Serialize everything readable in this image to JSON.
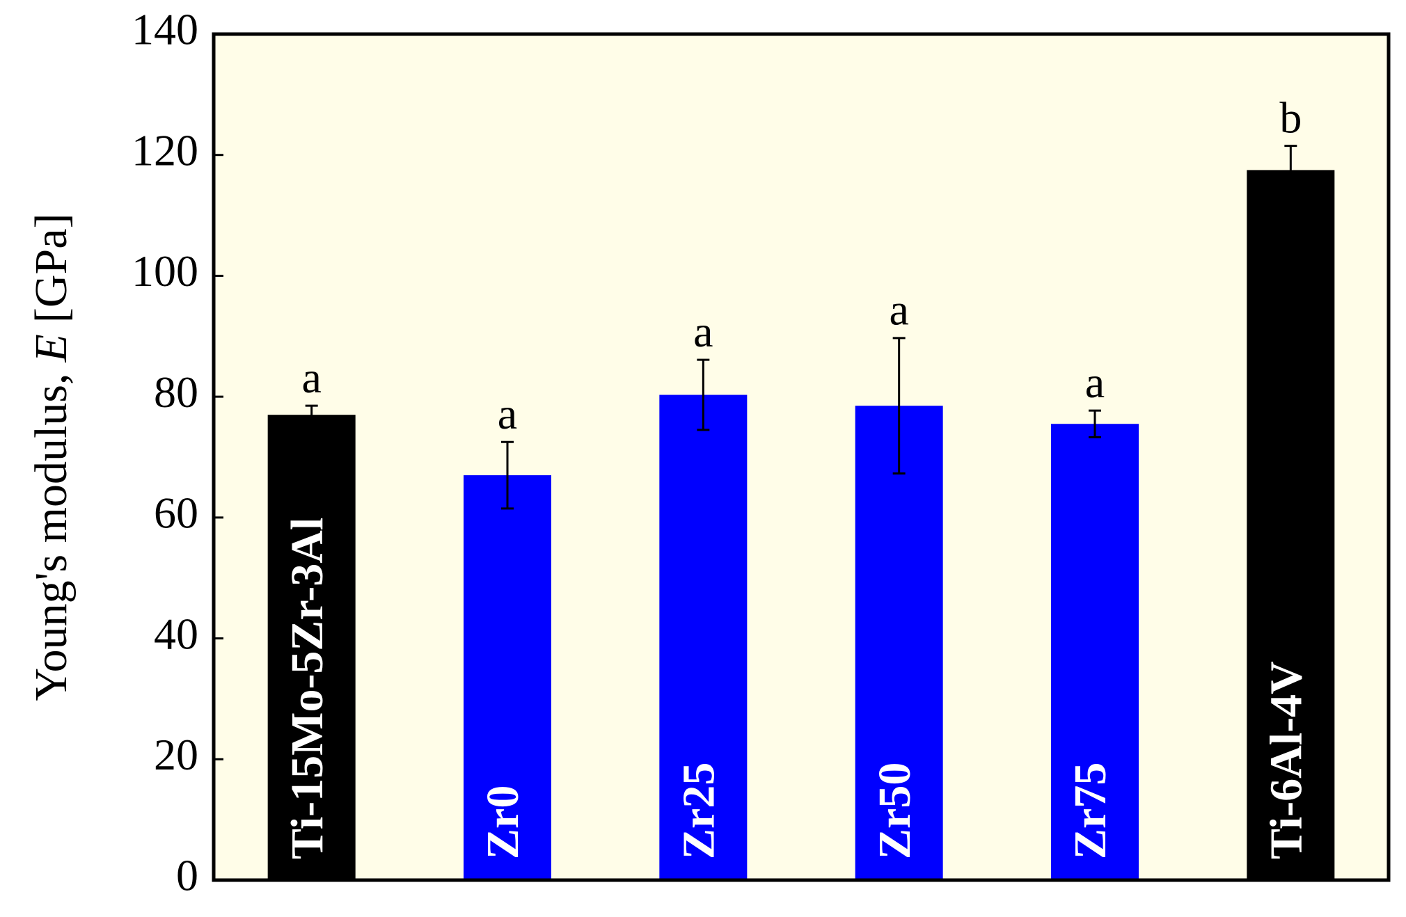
{
  "chart_data": {
    "type": "bar",
    "y_label_parts": [
      "Young's modulus,",
      "E",
      "[GPa]"
    ],
    "categories": [
      "Ti-15Mo-5Zr-3Al",
      "Zr0",
      "Zr25",
      "Zr50",
      "Zr75",
      "Ti-6Al-4V"
    ],
    "values": [
      77,
      67,
      80.3,
      78.5,
      75.5,
      117.5
    ],
    "errors": [
      1.5,
      5.5,
      5.8,
      11.2,
      2.2,
      4
    ],
    "colors": [
      "#000000",
      "#0000ff",
      "#0000ff",
      "#0000ff",
      "#0000ff",
      "#000000"
    ],
    "annotations": [
      "a",
      "a",
      "a",
      "a",
      "a",
      "b"
    ],
    "ylim": [
      0,
      140
    ],
    "yticks": [
      0,
      20,
      40,
      60,
      80,
      100,
      120,
      140
    ],
    "background": "#fffde8"
  }
}
